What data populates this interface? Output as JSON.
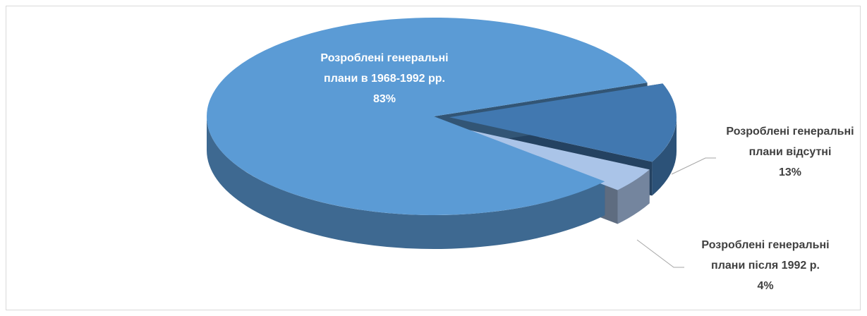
{
  "chart_data": {
    "type": "pie",
    "categories": [
      "Розроблені генеральні плани відсутні",
      "Розроблені генеральні плани після 1992 р.",
      "Розроблені генеральні плани в 1968-1992 рр."
    ],
    "values": [
      13,
      4,
      83
    ],
    "value_labels": [
      "13%",
      "4%",
      "83%"
    ],
    "colors": [
      "#4178b0",
      "#aac4e8",
      "#5b9bd5"
    ]
  }
}
